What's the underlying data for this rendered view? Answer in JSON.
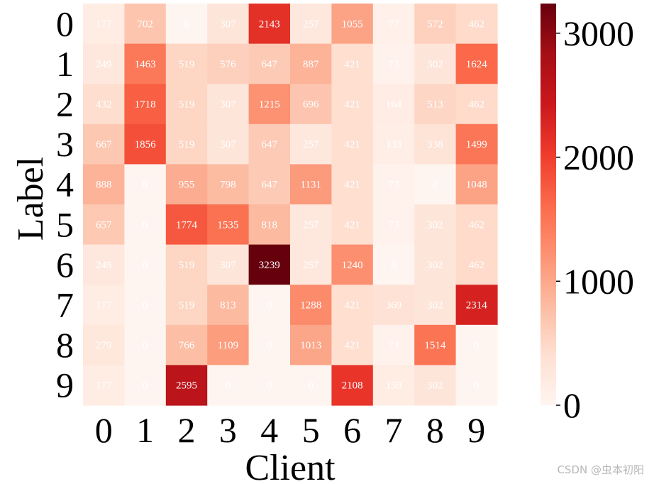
{
  "chart_data": {
    "type": "heatmap",
    "title": "",
    "xlabel": "Client",
    "ylabel": "Label",
    "x_categories": [
      "0",
      "1",
      "2",
      "3",
      "4",
      "5",
      "6",
      "7",
      "8",
      "9"
    ],
    "y_categories": [
      "0",
      "1",
      "2",
      "3",
      "4",
      "5",
      "6",
      "7",
      "8",
      "9"
    ],
    "values": [
      [
        177,
        702,
        0,
        307,
        2143,
        257,
        1055,
        77,
        572,
        462
      ],
      [
        249,
        1463,
        519,
        576,
        647,
        887,
        421,
        73,
        302,
        1624
      ],
      [
        432,
        1718,
        519,
        307,
        1215,
        696,
        421,
        164,
        513,
        462
      ],
      [
        667,
        1856,
        519,
        307,
        647,
        257,
        421,
        133,
        338,
        1499
      ],
      [
        888,
        0,
        955,
        798,
        647,
        1131,
        421,
        73,
        0,
        1048
      ],
      [
        657,
        0,
        1774,
        1535,
        818,
        257,
        421,
        73,
        302,
        462
      ],
      [
        249,
        0,
        519,
        307,
        3239,
        257,
        1240,
        0,
        302,
        462
      ],
      [
        177,
        0,
        519,
        813,
        0,
        1288,
        421,
        369,
        302,
        2314
      ],
      [
        279,
        0,
        766,
        1109,
        0,
        1013,
        421,
        73,
        1514,
        0
      ],
      [
        177,
        0,
        2595,
        0,
        0,
        0,
        2108,
        159,
        302,
        0
      ]
    ],
    "colorbar": {
      "colormap": "Reds",
      "range": [
        0,
        3239
      ],
      "ticks": [
        0,
        1000,
        2000,
        3000
      ],
      "tick_labels": [
        "0",
        "1000",
        "2000",
        "3000"
      ]
    },
    "annotations": true
  },
  "watermark": "CSDN @虫本初阳"
}
